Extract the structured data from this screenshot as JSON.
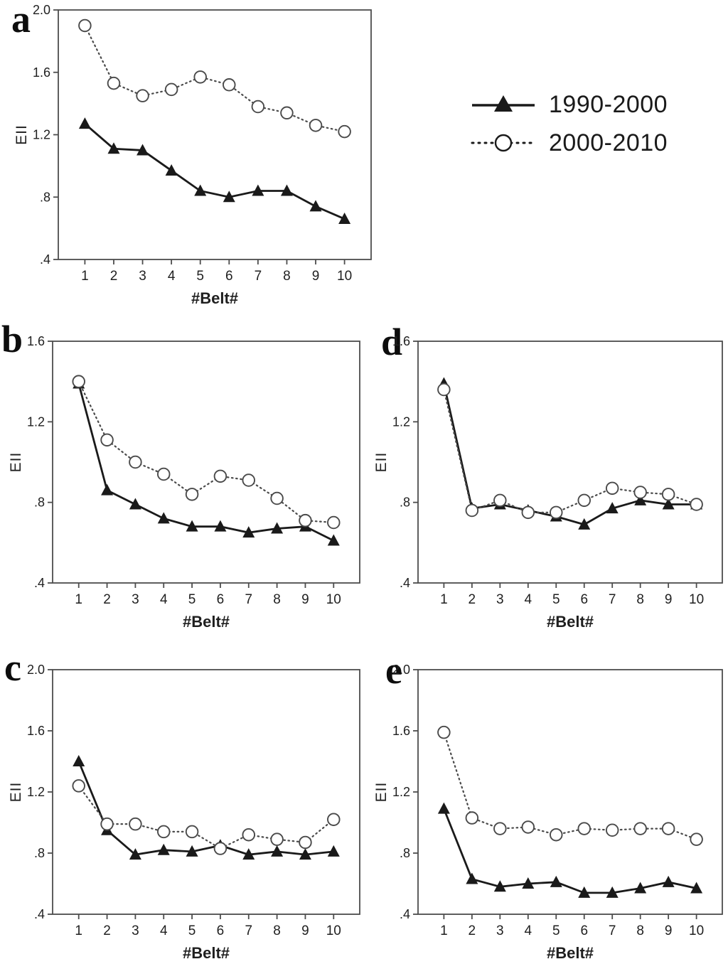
{
  "colors": {
    "ink": "#1a1a1a",
    "frame": "#4d4d4d",
    "dotted": "#4a4a4a",
    "marker_fill": "#ffffff",
    "text": "#1f1f1f"
  },
  "legend": {
    "items": [
      {
        "label": "1990-2000",
        "marker": "filled-triangle",
        "line": "solid"
      },
      {
        "label": "2000-2010",
        "marker": "open-circle",
        "line": "dotted"
      }
    ]
  },
  "chart_data": [
    {
      "id": "a",
      "panel_label": "a",
      "type": "line",
      "x": [
        1,
        2,
        3,
        4,
        5,
        6,
        7,
        8,
        9,
        10
      ],
      "xtick_labels": [
        "1",
        "2",
        "3",
        "4",
        "5",
        "6",
        "7",
        "8",
        "9",
        "10"
      ],
      "xlabel": "#Belt#",
      "ylabel": "EII",
      "ylim": [
        0.4,
        2.0
      ],
      "yticks": [
        0.4,
        0.8,
        1.2,
        1.6,
        2.0
      ],
      "ytick_labels": [
        ".4",
        ".8",
        "1.2",
        "1.6",
        "2.0"
      ],
      "grid": false,
      "series": [
        {
          "name": "1990-2000",
          "marker": "triangle",
          "line": "solid",
          "values": [
            1.27,
            1.11,
            1.1,
            0.97,
            0.84,
            0.8,
            0.84,
            0.84,
            0.74,
            0.66
          ]
        },
        {
          "name": "2000-2010",
          "marker": "circle",
          "line": "dotted",
          "values": [
            1.9,
            1.53,
            1.45,
            1.49,
            1.57,
            1.52,
            1.38,
            1.34,
            1.26,
            1.22
          ]
        }
      ]
    },
    {
      "id": "b",
      "panel_label": "b",
      "type": "line",
      "x": [
        1,
        2,
        3,
        4,
        5,
        6,
        7,
        8,
        9,
        10
      ],
      "xtick_labels": [
        "1",
        "2",
        "3",
        "4",
        "5",
        "6",
        "7",
        "8",
        "9",
        "10"
      ],
      "xlabel": "#Belt#",
      "ylabel": "EII",
      "ylim": [
        0.4,
        1.6
      ],
      "yticks": [
        0.4,
        0.8,
        1.2,
        1.6
      ],
      "ytick_labels": [
        ".4",
        ".8",
        "1.2",
        "1.6"
      ],
      "grid": false,
      "series": [
        {
          "name": "1990-2000",
          "marker": "triangle",
          "line": "solid",
          "values": [
            1.39,
            0.86,
            0.79,
            0.72,
            0.68,
            0.68,
            0.65,
            0.67,
            0.68,
            0.61
          ]
        },
        {
          "name": "2000-2010",
          "marker": "circle",
          "line": "dotted",
          "values": [
            1.4,
            1.11,
            1.0,
            0.94,
            0.84,
            0.93,
            0.91,
            0.82,
            0.71,
            0.7
          ]
        }
      ]
    },
    {
      "id": "c",
      "panel_label": "c",
      "type": "line",
      "x": [
        1,
        2,
        3,
        4,
        5,
        6,
        7,
        8,
        9,
        10
      ],
      "xtick_labels": [
        "1",
        "2",
        "3",
        "4",
        "5",
        "6",
        "7",
        "8",
        "9",
        "10"
      ],
      "xlabel": "#Belt#",
      "ylabel": "EII",
      "ylim": [
        0.4,
        2.0
      ],
      "yticks": [
        0.4,
        0.8,
        1.2,
        1.6,
        2.0
      ],
      "ytick_labels": [
        ".4",
        ".8",
        "1.2",
        "1.6",
        "2.0"
      ],
      "grid": false,
      "series": [
        {
          "name": "1990-2000",
          "marker": "triangle",
          "line": "solid",
          "values": [
            1.4,
            0.95,
            0.79,
            0.82,
            0.81,
            0.85,
            0.79,
            0.81,
            0.79,
            0.81
          ]
        },
        {
          "name": "2000-2010",
          "marker": "circle",
          "line": "dotted",
          "values": [
            1.24,
            0.99,
            0.99,
            0.94,
            0.94,
            0.83,
            0.92,
            0.89,
            0.87,
            1.02
          ]
        }
      ]
    },
    {
      "id": "d",
      "panel_label": "d",
      "type": "line",
      "x": [
        1,
        2,
        3,
        4,
        5,
        6,
        7,
        8,
        9,
        10
      ],
      "xtick_labels": [
        "1",
        "2",
        "3",
        "4",
        "5",
        "6",
        "7",
        "8",
        "9",
        "10"
      ],
      "xlabel": "#Belt#",
      "ylabel": "EII",
      "ylim": [
        0.4,
        1.6
      ],
      "yticks": [
        0.4,
        0.8,
        1.2,
        1.6
      ],
      "ytick_labels": [
        ".4",
        ".8",
        "1.2",
        "1.6"
      ],
      "grid": false,
      "series": [
        {
          "name": "1990-2000",
          "marker": "triangle",
          "line": "solid",
          "values": [
            1.39,
            0.77,
            0.79,
            0.76,
            0.73,
            0.69,
            0.77,
            0.81,
            0.79,
            0.79
          ]
        },
        {
          "name": "2000-2010",
          "marker": "circle",
          "line": "dotted",
          "values": [
            1.36,
            0.76,
            0.81,
            0.75,
            0.75,
            0.81,
            0.87,
            0.85,
            0.84,
            0.79
          ]
        }
      ]
    },
    {
      "id": "e",
      "panel_label": "e",
      "type": "line",
      "x": [
        1,
        2,
        3,
        4,
        5,
        6,
        7,
        8,
        9,
        10
      ],
      "xtick_labels": [
        "1",
        "2",
        "3",
        "4",
        "5",
        "6",
        "7",
        "8",
        "9",
        "10"
      ],
      "xlabel": "#Belt#",
      "ylabel": "EII",
      "ylim": [
        0.4,
        2.0
      ],
      "yticks": [
        0.4,
        0.8,
        1.2,
        1.6,
        2.0
      ],
      "ytick_labels": [
        ".4",
        ".8",
        "1.2",
        "1.6",
        "2.0"
      ],
      "grid": false,
      "series": [
        {
          "name": "1990-2000",
          "marker": "triangle",
          "line": "solid",
          "values": [
            1.09,
            0.63,
            0.58,
            0.6,
            0.61,
            0.54,
            0.54,
            0.57,
            0.61,
            0.57
          ]
        },
        {
          "name": "2000-2010",
          "marker": "circle",
          "line": "dotted",
          "values": [
            1.59,
            1.03,
            0.96,
            0.97,
            0.92,
            0.96,
            0.95,
            0.96,
            0.96,
            0.89
          ]
        }
      ]
    }
  ]
}
